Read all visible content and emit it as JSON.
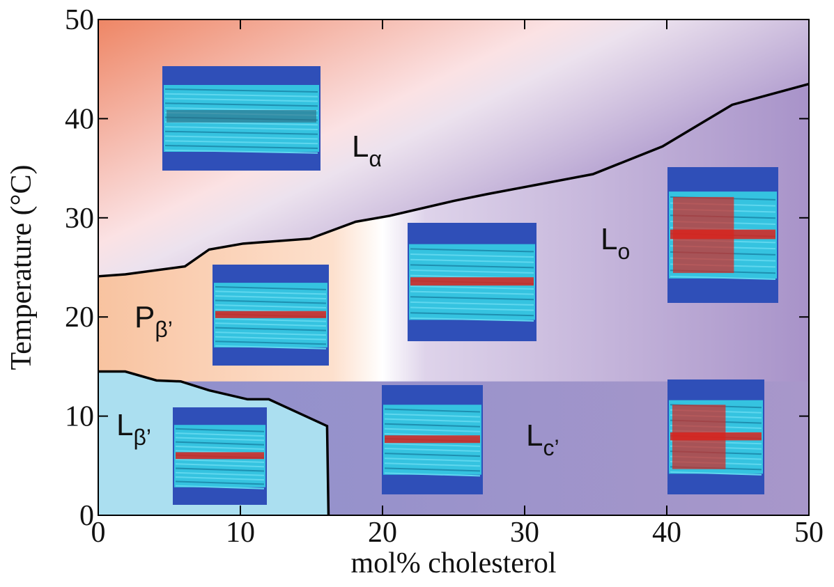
{
  "chart_data": {
    "type": "phase-diagram",
    "xlabel": "mol% cholesterol",
    "ylabel": "Temperature (°C)",
    "xlim": [
      0,
      50
    ],
    "ylim": [
      0,
      50
    ],
    "xticks": [
      0,
      10,
      20,
      30,
      40,
      50
    ],
    "yticks": [
      0,
      10,
      20,
      30,
      40,
      50
    ],
    "boundaries": [
      {
        "color": "#000000",
        "x": [
          0,
          1.9,
          6.1,
          7.8,
          10.2,
          14.9,
          18.1,
          20.5,
          25,
          27.4,
          34.8,
          39.7,
          44.6,
          50
        ],
        "y": [
          24.1,
          24.3,
          25.1,
          26.8,
          27.4,
          27.9,
          29.6,
          30.2,
          31.7,
          32.4,
          34.4,
          37.2,
          41.4,
          43.5
        ]
      },
      {
        "color": "#000000",
        "x": [
          0,
          1.9,
          4.1,
          5.8,
          7.8,
          10.5,
          12,
          16.1,
          16.2
        ],
        "y": [
          14.5,
          14.5,
          13.6,
          13.5,
          12.6,
          11.7,
          11.7,
          9,
          0
        ]
      },
      {
        "color": "none",
        "x": [
          16.2,
          50
        ],
        "y": [
          13.5,
          13.5
        ]
      }
    ],
    "phases": [
      {
        "main": "L",
        "sub": "α"
      },
      {
        "main": "P",
        "sub": "β’"
      },
      {
        "main": "L",
        "sub": "β’"
      },
      {
        "main": "L",
        "sub": "c’"
      },
      {
        "main": "L",
        "sub": "o"
      }
    ]
  }
}
